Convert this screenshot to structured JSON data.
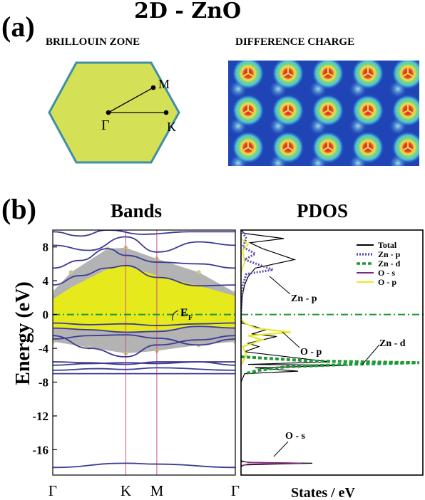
{
  "figure": {
    "main_title": "2D - ZnO",
    "panel_a_label": "(a)",
    "panel_b_label": "(b)"
  },
  "panel_a": {
    "bz_title": "BRILLOUIN ZONE",
    "charge_title": "DIFFERENCE  CHARGE",
    "points": {
      "gamma": "Γ",
      "m": "M",
      "k": "K"
    },
    "hexagon_fill": "#d4e157",
    "hexagon_stroke": "#3f8ea8",
    "charge_colors": [
      "#1a3fb0",
      "#2f7ed8",
      "#4fc3d8",
      "#7fd67a",
      "#f4e04d",
      "#f07a2a",
      "#d81f1f"
    ]
  },
  "panel_b": {
    "bands_title": "Bands",
    "pdos_title": "PDOS",
    "ylabel": "Energy (eV)",
    "xlabel_pdos": "States / eV",
    "ef_label": "E",
    "ef_sub": "F",
    "annotations": {
      "znp": "Zn - p",
      "op": "O - p",
      "znd": "Zn - d",
      "os": "O - s"
    },
    "legend": [
      {
        "label": "Total",
        "color": "#000000",
        "style": "solid"
      },
      {
        "label": "Zn - p",
        "color": "#5b4fb0",
        "style": "dotted"
      },
      {
        "label": "Zn - d",
        "color": "#1f9a3a",
        "style": "dashed"
      },
      {
        "label": "O - s",
        "color": "#7a2a7a",
        "style": "solid"
      },
      {
        "label": "O - p",
        "color": "#e8e82a",
        "style": "solid"
      }
    ]
  },
  "chart_data": {
    "type": "line",
    "title": "Bands",
    "ylabel": "Energy (eV)",
    "xlabel": "",
    "ylim": [
      -19,
      10
    ],
    "yticks": [
      8,
      4,
      0,
      -4,
      -8,
      -12,
      -16
    ],
    "kpath": [
      "Γ",
      "K",
      "M",
      "Γ"
    ],
    "kpath_positions": [
      0,
      0.4,
      0.57,
      1.0
    ],
    "band_color": "#3b3b95",
    "shade_color": "#b3b3b3",
    "fill_color": "#e6ea1c",
    "fermi_color": "#1d9a3a",
    "fermi_level": 0,
    "series": [
      {
        "values": [
          [
            0,
            -18.1
          ],
          [
            0.4,
            -17.6
          ],
          [
            0.57,
            -17.7
          ],
          [
            1,
            -18.1
          ]
        ]
      },
      {
        "values": [
          [
            0,
            -7.0
          ],
          [
            0.4,
            -7.0
          ],
          [
            0.57,
            -7.0
          ],
          [
            1,
            -7.0
          ]
        ]
      },
      {
        "values": [
          [
            0,
            -6.6
          ],
          [
            0.25,
            -6.4
          ],
          [
            0.4,
            -6.5
          ],
          [
            0.57,
            -6.3
          ],
          [
            1,
            -6.6
          ]
        ]
      },
      {
        "values": [
          [
            0,
            -6.0
          ],
          [
            0.2,
            -5.8
          ],
          [
            0.4,
            -5.7
          ],
          [
            0.57,
            -5.8
          ],
          [
            0.8,
            -5.6
          ],
          [
            1,
            -6.0
          ]
        ]
      },
      {
        "values": [
          [
            0,
            -5.6
          ],
          [
            0.2,
            -5.7
          ],
          [
            0.4,
            -5.9
          ],
          [
            0.57,
            -5.6
          ],
          [
            1,
            -5.6
          ]
        ]
      },
      {
        "values": [
          [
            0,
            -2.5
          ],
          [
            0.2,
            -4.0
          ],
          [
            0.4,
            -5.0
          ],
          [
            0.57,
            -3.6
          ],
          [
            0.8,
            -3.0
          ],
          [
            1,
            -2.5
          ]
        ]
      },
      {
        "values": [
          [
            0,
            -2.9
          ],
          [
            0.2,
            -2.5
          ],
          [
            0.4,
            -2.4
          ],
          [
            0.57,
            -2.8
          ],
          [
            0.8,
            -3.6
          ],
          [
            1,
            -2.9
          ]
        ]
      },
      {
        "values": [
          [
            0,
            -1.6
          ],
          [
            0.2,
            -1.8
          ],
          [
            0.4,
            -2.1
          ],
          [
            0.57,
            -2.0
          ],
          [
            0.8,
            -1.4
          ],
          [
            1,
            -1.6
          ]
        ]
      },
      {
        "values": [
          [
            0,
            -1.0
          ],
          [
            0.2,
            -1.2
          ],
          [
            0.4,
            -1.1
          ],
          [
            0.57,
            -1.3
          ],
          [
            0.8,
            -1.1
          ],
          [
            1,
            -1.0
          ]
        ]
      },
      {
        "values": [
          [
            0,
            3.5
          ],
          [
            0.15,
            4.6
          ],
          [
            0.3,
            5.5
          ],
          [
            0.4,
            5.8
          ],
          [
            0.57,
            4.4
          ],
          [
            0.8,
            3.4
          ],
          [
            1,
            3.5
          ]
        ]
      },
      {
        "values": [
          [
            0,
            5.5
          ],
          [
            0.15,
            6.4
          ],
          [
            0.3,
            7.8
          ],
          [
            0.4,
            7.0
          ],
          [
            0.57,
            6.2
          ],
          [
            0.8,
            6.0
          ],
          [
            1,
            5.5
          ]
        ]
      },
      {
        "values": [
          [
            0,
            8.2
          ],
          [
            0.2,
            7.6
          ],
          [
            0.4,
            9.2
          ],
          [
            0.57,
            7.4
          ],
          [
            0.8,
            8.6
          ],
          [
            1,
            8.2
          ]
        ]
      },
      {
        "values": [
          [
            0,
            9.8
          ],
          [
            0.15,
            9.3
          ],
          [
            0.3,
            10.0
          ],
          [
            0.5,
            9.5
          ],
          [
            0.75,
            9.8
          ],
          [
            1,
            9.8
          ]
        ]
      }
    ],
    "pdos": {
      "xlabel": "States / eV",
      "annotations": [
        "Zn - p",
        "O - p",
        "Zn - d",
        "O - s"
      ]
    }
  }
}
